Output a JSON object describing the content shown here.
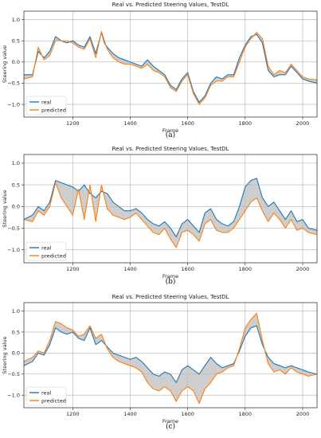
{
  "chart_data": [
    {
      "type": "line",
      "title": "Real vs. Predicted Steering Values, TestDL",
      "xlabel": "Frame",
      "ylabel": "Steering value",
      "xlim": [
        1030,
        2050
      ],
      "ylim": [
        -1.3,
        1.2
      ],
      "xticks": [
        1200,
        1400,
        1600,
        1800,
        2000
      ],
      "yticks": [
        -1.0,
        -0.5,
        0.0,
        0.5,
        1.0
      ],
      "grid": true,
      "legend_position": "lower-left",
      "fill_between": true,
      "panel_label": "(a)",
      "series": [
        {
          "name": "real",
          "color": "#1f77b4",
          "x": [
            1030,
            1060,
            1080,
            1100,
            1120,
            1140,
            1160,
            1180,
            1200,
            1220,
            1240,
            1260,
            1280,
            1300,
            1310,
            1320,
            1340,
            1360,
            1380,
            1400,
            1420,
            1440,
            1460,
            1480,
            1500,
            1520,
            1540,
            1560,
            1580,
            1600,
            1620,
            1640,
            1660,
            1680,
            1700,
            1720,
            1740,
            1760,
            1780,
            1800,
            1820,
            1840,
            1860,
            1880,
            1900,
            1920,
            1940,
            1960,
            1980,
            2000,
            2020,
            2050
          ],
          "values": [
            -0.3,
            -0.3,
            0.25,
            0.1,
            0.25,
            0.6,
            0.5,
            0.45,
            0.5,
            0.4,
            0.35,
            0.6,
            0.2,
            0.7,
            0.45,
            0.35,
            0.2,
            0.1,
            0.05,
            0.0,
            -0.05,
            -0.1,
            0.05,
            -0.1,
            -0.2,
            -0.3,
            -0.55,
            -0.65,
            -0.4,
            -0.25,
            -0.7,
            -0.95,
            -0.8,
            -0.5,
            -0.35,
            -0.4,
            -0.3,
            -0.3,
            0.1,
            0.4,
            0.6,
            0.65,
            0.45,
            -0.2,
            -0.35,
            -0.3,
            -0.3,
            -0.1,
            -0.25,
            -0.4,
            -0.45,
            -0.5
          ]
        },
        {
          "name": "predicted",
          "color": "#ff7f0e",
          "x": [
            1030,
            1060,
            1080,
            1100,
            1120,
            1140,
            1160,
            1180,
            1200,
            1220,
            1240,
            1260,
            1280,
            1300,
            1310,
            1320,
            1340,
            1360,
            1380,
            1400,
            1420,
            1440,
            1460,
            1480,
            1500,
            1520,
            1540,
            1560,
            1580,
            1600,
            1620,
            1640,
            1660,
            1680,
            1700,
            1720,
            1740,
            1760,
            1780,
            1800,
            1820,
            1840,
            1860,
            1880,
            1900,
            1920,
            1940,
            1960,
            1980,
            2000,
            2020,
            2050
          ],
          "values": [
            -0.4,
            -0.35,
            0.35,
            0.05,
            0.15,
            0.5,
            0.5,
            0.5,
            0.45,
            0.35,
            0.3,
            0.55,
            0.1,
            0.72,
            0.5,
            0.3,
            0.1,
            0.0,
            -0.05,
            -0.05,
            -0.1,
            -0.15,
            -0.05,
            -0.2,
            -0.25,
            -0.35,
            -0.6,
            -0.7,
            -0.45,
            -0.3,
            -0.75,
            -1.0,
            -0.85,
            -0.55,
            -0.45,
            -0.45,
            -0.35,
            -0.35,
            0.0,
            0.35,
            0.55,
            0.7,
            0.55,
            -0.1,
            -0.3,
            -0.2,
            -0.25,
            -0.05,
            -0.2,
            -0.35,
            -0.4,
            -0.42
          ]
        }
      ]
    },
    {
      "type": "line",
      "title": "Real vs. Predicted Steering Values, TestDL",
      "xlabel": "Frame",
      "ylabel": "Steering value",
      "xlim": [
        1030,
        2050
      ],
      "ylim": [
        -1.3,
        1.2
      ],
      "xticks": [
        1200,
        1400,
        1600,
        1800,
        2000
      ],
      "yticks": [
        -1.0,
        -0.5,
        0.0,
        0.5,
        1.0
      ],
      "grid": true,
      "legend_position": "lower-left",
      "fill_between": true,
      "panel_label": "(b)",
      "series": [
        {
          "name": "real",
          "color": "#1f77b4",
          "x": [
            1030,
            1060,
            1080,
            1100,
            1120,
            1140,
            1160,
            1180,
            1200,
            1220,
            1240,
            1260,
            1280,
            1300,
            1320,
            1340,
            1360,
            1380,
            1400,
            1420,
            1440,
            1460,
            1480,
            1500,
            1520,
            1540,
            1560,
            1580,
            1600,
            1620,
            1640,
            1660,
            1680,
            1700,
            1720,
            1740,
            1760,
            1780,
            1800,
            1820,
            1840,
            1860,
            1880,
            1900,
            1920,
            1940,
            1960,
            1980,
            2000,
            2020,
            2050
          ],
          "values": [
            -0.3,
            -0.2,
            0.0,
            -0.1,
            0.1,
            0.6,
            0.55,
            0.5,
            0.45,
            0.35,
            0.5,
            0.3,
            0.2,
            0.35,
            0.3,
            0.1,
            0.0,
            -0.1,
            -0.1,
            -0.05,
            -0.15,
            -0.3,
            -0.4,
            -0.45,
            -0.35,
            -0.5,
            -0.7,
            -0.4,
            -0.3,
            -0.45,
            -0.6,
            -0.15,
            -0.05,
            -0.3,
            -0.4,
            -0.45,
            -0.35,
            0.0,
            0.45,
            0.6,
            0.65,
            0.2,
            0.0,
            0.1,
            -0.1,
            -0.3,
            -0.1,
            -0.35,
            -0.3,
            -0.5,
            -0.55
          ]
        },
        {
          "name": "predicted",
          "color": "#ff7f0e",
          "x": [
            1030,
            1060,
            1080,
            1100,
            1120,
            1140,
            1160,
            1180,
            1200,
            1220,
            1240,
            1260,
            1280,
            1300,
            1320,
            1340,
            1360,
            1380,
            1400,
            1420,
            1440,
            1460,
            1480,
            1500,
            1520,
            1540,
            1560,
            1580,
            1600,
            1620,
            1640,
            1660,
            1680,
            1700,
            1720,
            1740,
            1760,
            1780,
            1800,
            1820,
            1840,
            1860,
            1880,
            1900,
            1920,
            1940,
            1960,
            1980,
            2000,
            2020,
            2050
          ],
          "values": [
            -0.3,
            -0.35,
            -0.1,
            -0.2,
            0.0,
            0.55,
            0.2,
            0.0,
            -0.2,
            0.4,
            -0.3,
            0.5,
            -0.35,
            0.5,
            -0.05,
            -0.2,
            -0.25,
            -0.3,
            -0.25,
            -0.15,
            -0.3,
            -0.45,
            -0.6,
            -0.65,
            -0.5,
            -0.75,
            -0.95,
            -0.6,
            -0.55,
            -0.65,
            -0.8,
            -0.4,
            -0.3,
            -0.55,
            -0.6,
            -0.6,
            -0.5,
            -0.3,
            -0.1,
            0.1,
            0.2,
            -0.1,
            -0.35,
            -0.15,
            -0.3,
            -0.5,
            -0.3,
            -0.55,
            -0.5,
            -0.6,
            -0.65
          ]
        }
      ]
    },
    {
      "type": "line",
      "title": "Real vs. Predicted Steering Values, TestDL",
      "xlabel": "Frame",
      "ylabel": "Steering value",
      "xlim": [
        1030,
        2050
      ],
      "ylim": [
        -1.3,
        1.2
      ],
      "xticks": [
        1200,
        1400,
        1600,
        1800,
        2000
      ],
      "yticks": [
        -1.0,
        -0.5,
        0.0,
        0.5,
        1.0
      ],
      "grid": true,
      "legend_position": "lower-left",
      "fill_between": true,
      "panel_label": "(c)",
      "series": [
        {
          "name": "real",
          "color": "#1f77b4",
          "x": [
            1030,
            1060,
            1080,
            1100,
            1120,
            1140,
            1160,
            1180,
            1200,
            1220,
            1240,
            1260,
            1280,
            1300,
            1320,
            1340,
            1360,
            1380,
            1400,
            1420,
            1440,
            1460,
            1480,
            1500,
            1520,
            1540,
            1560,
            1580,
            1600,
            1620,
            1640,
            1660,
            1680,
            1700,
            1720,
            1740,
            1760,
            1780,
            1800,
            1820,
            1840,
            1860,
            1880,
            1900,
            1920,
            1940,
            1960,
            1980,
            2000,
            2020,
            2050
          ],
          "values": [
            -0.3,
            -0.2,
            0.0,
            -0.05,
            0.2,
            0.6,
            0.5,
            0.45,
            0.5,
            0.35,
            0.3,
            0.6,
            0.2,
            0.3,
            0.15,
            0.0,
            -0.05,
            -0.1,
            -0.15,
            -0.1,
            -0.2,
            -0.35,
            -0.5,
            -0.55,
            -0.45,
            -0.5,
            -0.7,
            -0.4,
            -0.3,
            -0.4,
            -0.5,
            -0.3,
            -0.1,
            -0.25,
            -0.35,
            -0.3,
            -0.25,
            0.05,
            0.4,
            0.6,
            0.65,
            0.2,
            -0.1,
            -0.25,
            -0.3,
            -0.35,
            -0.3,
            -0.35,
            -0.4,
            -0.45,
            -0.5
          ]
        },
        {
          "name": "predicted",
          "color": "#ff7f0e",
          "x": [
            1030,
            1060,
            1080,
            1100,
            1120,
            1140,
            1160,
            1180,
            1200,
            1220,
            1240,
            1260,
            1280,
            1300,
            1320,
            1340,
            1360,
            1380,
            1400,
            1420,
            1440,
            1460,
            1480,
            1500,
            1520,
            1540,
            1560,
            1580,
            1600,
            1620,
            1640,
            1660,
            1680,
            1700,
            1720,
            1740,
            1760,
            1780,
            1800,
            1820,
            1840,
            1860,
            1880,
            1900,
            1920,
            1940,
            1960,
            1980,
            2000,
            2020,
            2050
          ],
          "values": [
            -0.2,
            -0.1,
            0.05,
            0.0,
            0.3,
            0.75,
            0.7,
            0.6,
            0.55,
            0.4,
            0.45,
            0.65,
            0.35,
            0.45,
            0.1,
            -0.1,
            -0.2,
            -0.25,
            -0.3,
            -0.35,
            -0.45,
            -0.7,
            -0.85,
            -0.9,
            -0.8,
            -0.9,
            -1.15,
            -0.9,
            -0.8,
            -0.9,
            -1.2,
            -0.85,
            -0.7,
            -0.5,
            -0.45,
            -0.35,
            -0.3,
            0.1,
            0.6,
            0.8,
            0.95,
            0.3,
            -0.25,
            -0.45,
            -0.4,
            -0.5,
            -0.35,
            -0.45,
            -0.5,
            -0.55,
            -0.5
          ]
        }
      ]
    }
  ]
}
